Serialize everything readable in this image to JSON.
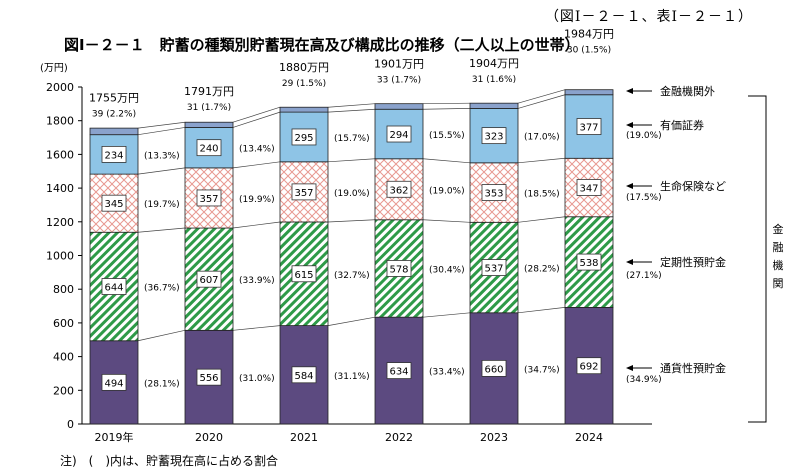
{
  "figure": {
    "reference": "（図Ⅰ－２－１、表Ⅰ－２－１）",
    "title": "図Ⅰ－２－１　貯蓄の種類別貯蓄現在高及び構成比の推移（二人以上の世帯）",
    "note": "注)　(　)内は、貯蓄現在高に占める割合"
  },
  "chart_data": {
    "type": "bar",
    "stacked": true,
    "title": "貯蓄の種類別貯蓄現在高及び構成比の推移（二人以上の世帯）",
    "ylabel": "(万円)",
    "ylim": [
      0,
      2000
    ],
    "yticks": [
      0,
      200,
      400,
      600,
      800,
      1000,
      1200,
      1400,
      1600,
      1800,
      2000
    ],
    "categories": [
      "2019年",
      "2020",
      "2021",
      "2022",
      "2023",
      "2024"
    ],
    "totals": [
      "1755万円",
      "1791万円",
      "1880万円",
      "1901万円",
      "1904万円",
      "1984万円"
    ],
    "total_values": [
      1755,
      1791,
      1880,
      1901,
      1904,
      1984
    ],
    "series": [
      {
        "name": "通貨性預貯金",
        "color": "#5c4a80",
        "pattern": "solid",
        "values": [
          494,
          556,
          584,
          634,
          660,
          692
        ],
        "shares": [
          "(28.1%)",
          "(31.0%)",
          "(31.1%)",
          "(33.4%)",
          "(34.7%)",
          "(34.9%)"
        ]
      },
      {
        "name": "定期性預貯金",
        "color": "#2e9a48",
        "pattern": "diagonal",
        "values": [
          644,
          607,
          615,
          578,
          537,
          538
        ],
        "shares": [
          "(36.7%)",
          "(33.9%)",
          "(32.7%)",
          "(30.4%)",
          "(28.2%)",
          "(27.1%)"
        ]
      },
      {
        "name": "生命保険など",
        "color": "#e89890",
        "pattern": "crosshatch",
        "values": [
          345,
          357,
          357,
          362,
          353,
          347
        ],
        "shares": [
          "(19.7%)",
          "(19.9%)",
          "(19.0%)",
          "(19.0%)",
          "(18.5%)",
          "(17.5%)"
        ]
      },
      {
        "name": "有価証券",
        "color": "#8ec4e6",
        "pattern": "solid",
        "values": [
          234,
          240,
          295,
          294,
          323,
          377
        ],
        "shares": [
          "(13.3%)",
          "(13.4%)",
          "(15.7%)",
          "(15.5%)",
          "(17.0%)",
          "(19.0%)"
        ]
      },
      {
        "name": "金融機関外",
        "color": "#8aa2cc",
        "pattern": "solid",
        "values": [
          39,
          31,
          29,
          33,
          31,
          30
        ],
        "shares": [
          "(2.2%)",
          "(1.7%)",
          "(1.5%)",
          "(1.7%)",
          "(1.6%)",
          "(1.5%)"
        ]
      }
    ],
    "group_label": "金融機関"
  }
}
